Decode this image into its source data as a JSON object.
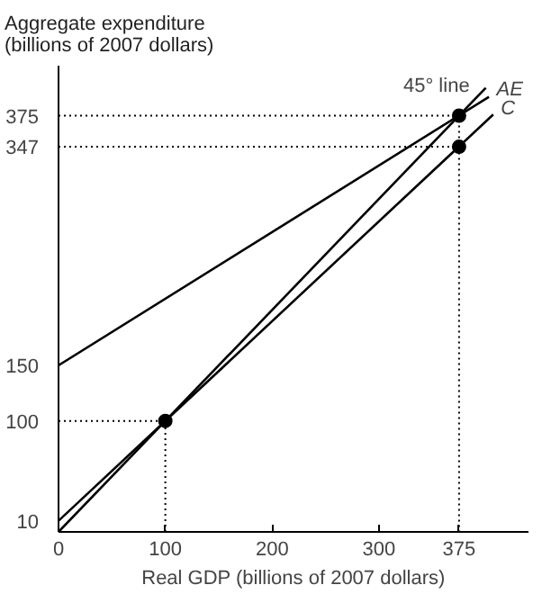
{
  "chart_data": {
    "type": "line",
    "xlabel": "Real GDP (billions of 2007 dollars)",
    "ylabel": "Aggregate expenditure\n(billions of 2007 dollars)",
    "xlim": [
      0,
      440
    ],
    "ylim": [
      0,
      420
    ],
    "xticks": [
      0,
      100,
      200,
      300,
      375
    ],
    "yticks": [
      10,
      100,
      150,
      347,
      375
    ],
    "grid": false,
    "series": [
      {
        "color": "#000000",
        "x": [
          0,
          400
        ],
        "values": [
          0,
          400
        ]
      },
      {
        "color": "#000000",
        "x": [
          0,
          403
        ],
        "values": [
          150,
          392
        ]
      },
      {
        "color": "#000000",
        "x": [
          0,
          407
        ],
        "values": [
          10,
          376
        ]
      },
      {
        "color": "#000000",
        "line_style": "dotted",
        "x": [
          0,
          100,
          100
        ],
        "values": [
          100,
          100,
          0
        ]
      },
      {
        "color": "#000000",
        "line_style": "dotted",
        "x": [
          0,
          375,
          375
        ],
        "values": [
          375,
          375,
          0
        ]
      },
      {
        "color": "#000000",
        "line_style": "dotted",
        "x": [
          0,
          375
        ],
        "values": [
          347,
          347
        ]
      },
      {
        "type": "scatter",
        "color": "#000000",
        "marker": "circle",
        "x": [
          100,
          375,
          375
        ],
        "values": [
          100,
          375,
          347
        ]
      }
    ],
    "annotations": [
      {
        "text": "45° line",
        "x": 395,
        "y": 395
      },
      {
        "text": "AE",
        "x": 405,
        "y": 392
      },
      {
        "text": "C",
        "x": 409,
        "y": 375
      }
    ]
  }
}
